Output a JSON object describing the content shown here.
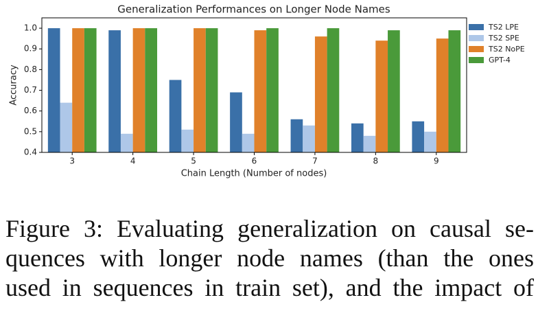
{
  "chart_data": {
    "type": "bar",
    "title": "Generalization Performances on Longer Node Names",
    "x_label": "Chain Length (Number of nodes)",
    "y_label": "Accuracy",
    "categories": [
      "3",
      "4",
      "5",
      "6",
      "7",
      "8",
      "9"
    ],
    "series": [
      {
        "name": "TS2 LPE",
        "color": "#3a70a8",
        "values": [
          1.0,
          0.99,
          0.75,
          0.69,
          0.56,
          0.54,
          0.55
        ]
      },
      {
        "name": "TS2 SPE",
        "color": "#aec7e8",
        "values": [
          0.64,
          0.49,
          0.51,
          0.49,
          0.53,
          0.48,
          0.5
        ]
      },
      {
        "name": "TS2 NoPE",
        "color": "#e0812a",
        "values": [
          1.0,
          1.0,
          1.0,
          0.99,
          0.96,
          0.94,
          0.95
        ]
      },
      {
        "name": "GPT-4",
        "color": "#4a9a3a",
        "values": [
          1.0,
          1.0,
          1.0,
          1.0,
          1.0,
          0.99,
          0.99
        ]
      }
    ],
    "ylim": [
      0.4,
      1.05
    ],
    "yticks": [
      0.4,
      0.5,
      0.6,
      0.7,
      0.8,
      0.9,
      {
        "value": 1,
        "label": "1.0"
      }
    ],
    "legend": "outside-right-top"
  },
  "caption": {
    "lines": [
      "Figure 3: Evaluating generalization on causal se-",
      "quences with longer node names (than the ones",
      "used in sequences in train set), and the impact of"
    ]
  }
}
